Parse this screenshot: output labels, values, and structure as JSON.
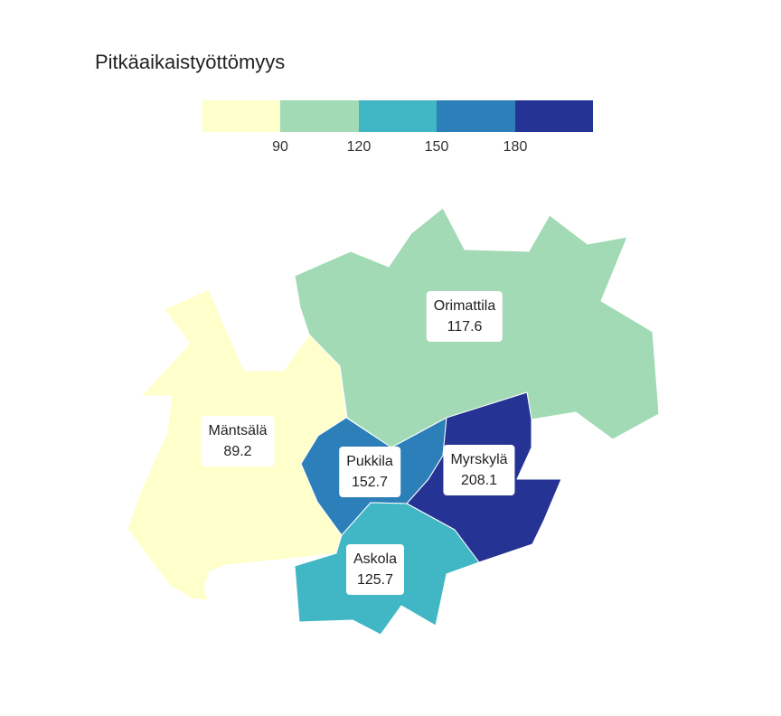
{
  "title": "Pitkäaikaistyöttömyys",
  "legend": {
    "colors": [
      "#ffffcc",
      "#a1dab4",
      "#41b6c4",
      "#2c7fb8",
      "#253494"
    ],
    "ticks": [
      "90",
      "120",
      "150",
      "180"
    ],
    "breaks": [
      90,
      120,
      150,
      180
    ]
  },
  "regions": [
    {
      "name": "Mäntsälä",
      "value": "89.2",
      "color": "#ffffcc"
    },
    {
      "name": "Orimattila",
      "value": "117.6",
      "color": "#a1dab4"
    },
    {
      "name": "Pukkila",
      "value": "152.7",
      "color": "#2c7fb8"
    },
    {
      "name": "Myrskylä",
      "value": "208.1",
      "color": "#253494"
    },
    {
      "name": "Askola",
      "value": "125.7",
      "color": "#41b6c4"
    }
  ]
}
